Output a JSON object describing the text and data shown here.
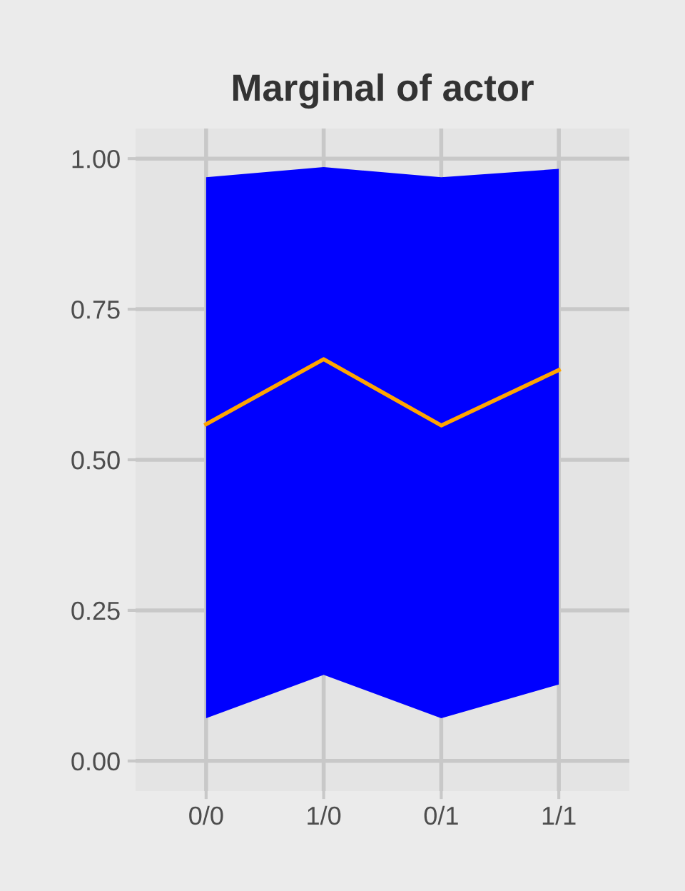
{
  "chart_data": {
    "type": "line",
    "title": "Marginal of actor",
    "categories": [
      "0/0",
      "1/0",
      "0/1",
      "1/1"
    ],
    "series": [
      {
        "color": "#ffa500",
        "values": [
          0.559,
          0.667,
          0.557,
          0.649
        ],
        "lower": [
          0.071,
          0.143,
          0.071,
          0.127
        ],
        "upper": [
          0.969,
          0.986,
          0.969,
          0.983
        ]
      }
    ],
    "ylim": [
      -0.05,
      1.05
    ],
    "yticks": [
      {
        "value": 0,
        "label": "0.00"
      },
      {
        "value": 0.25,
        "label": "0.25"
      },
      {
        "value": 0.5,
        "label": "0.50"
      },
      {
        "value": 0.75,
        "label": "0.75"
      },
      {
        "value": 1,
        "label": "1.00"
      }
    ],
    "grid": true,
    "marker": "none",
    "line_style": "solid"
  }
}
